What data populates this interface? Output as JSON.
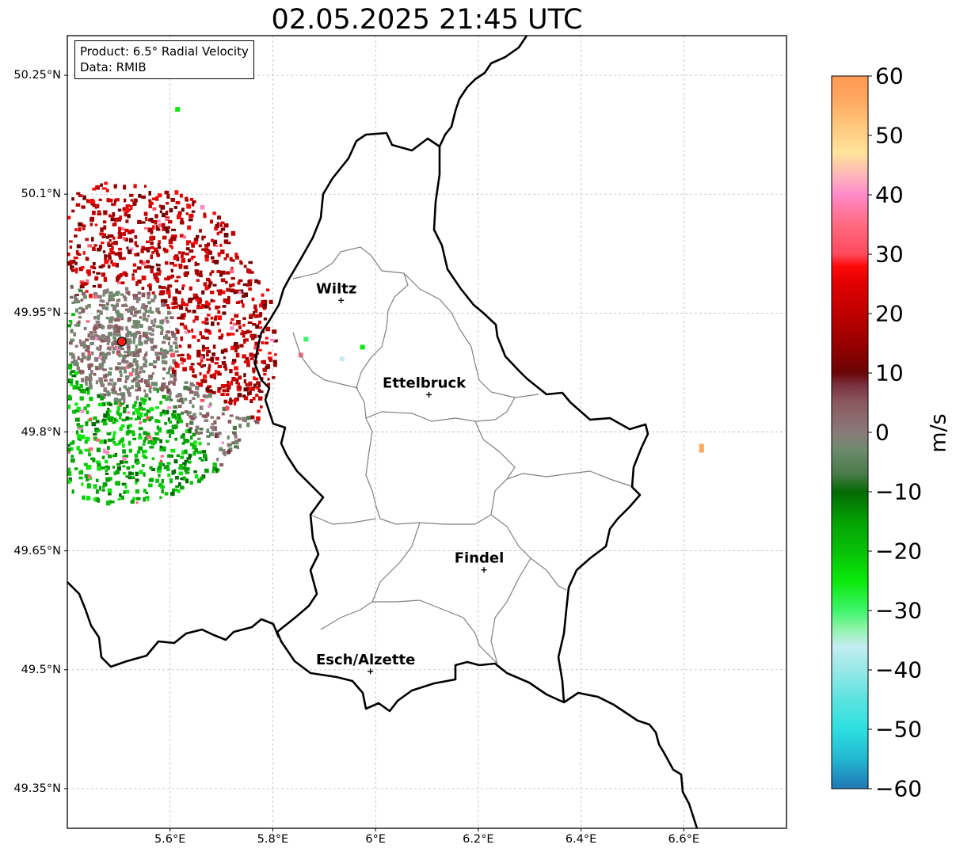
{
  "title": "02.05.2025 21:45 UTC",
  "info_box": {
    "product": "Product: 6.5° Radial Velocity",
    "data_source": "Data: RMIB"
  },
  "map": {
    "lat_ticks": [
      {
        "value": 50.25,
        "label": "50.25°N"
      },
      {
        "value": 50.1,
        "label": "50.1°N"
      },
      {
        "value": 49.95,
        "label": "49.95°N"
      },
      {
        "value": 49.8,
        "label": "49.8°N"
      },
      {
        "value": 49.65,
        "label": "49.65°N"
      },
      {
        "value": 49.5,
        "label": "49.5°N"
      },
      {
        "value": 49.35,
        "label": "49.35°N"
      }
    ],
    "lon_ticks": [
      {
        "value": 5.6,
        "label": "5.6°E"
      },
      {
        "value": 5.8,
        "label": "5.8°E"
      },
      {
        "value": 6.0,
        "label": "6°E"
      },
      {
        "value": 6.2,
        "label": "6.2°E"
      },
      {
        "value": 6.4,
        "label": "6.4°E"
      },
      {
        "value": 6.6,
        "label": "6.6°E"
      }
    ],
    "extent": {
      "lon_min": 5.4,
      "lon_max": 6.8,
      "lat_min": 49.3,
      "lat_max": 50.3
    },
    "cities": [
      {
        "name": "Wiltz",
        "lon": 5.933,
        "lat": 49.966
      },
      {
        "name": "Ettelbruck",
        "lon": 6.104,
        "lat": 49.847
      },
      {
        "name": "Findel",
        "lon": 6.211,
        "lat": 49.626
      },
      {
        "name": "Esch/Alzette",
        "lon": 5.99,
        "lat": 49.498
      }
    ],
    "radar_site": {
      "lon": 5.506,
      "lat": 49.914,
      "color": "#ff1a1a"
    },
    "gridlines": true,
    "colors": {
      "border": "#000000",
      "internal_border": "#808080",
      "grid": "#b0b0b0"
    }
  },
  "colorbar": {
    "label": "m/s",
    "min": -60,
    "max": 60,
    "ticks": [
      {
        "value": 60,
        "label": "60"
      },
      {
        "value": 50,
        "label": "50"
      },
      {
        "value": 40,
        "label": "40"
      },
      {
        "value": 30,
        "label": "30"
      },
      {
        "value": 20,
        "label": "20"
      },
      {
        "value": 10,
        "label": "10"
      },
      {
        "value": 0,
        "label": "0"
      },
      {
        "value": -10,
        "label": "−10"
      },
      {
        "value": -20,
        "label": "−20"
      },
      {
        "value": -30,
        "label": "−30"
      },
      {
        "value": -40,
        "label": "−40"
      },
      {
        "value": -50,
        "label": "−50"
      },
      {
        "value": -60,
        "label": "−60"
      }
    ],
    "stops": [
      {
        "value": -60,
        "color": "#1f77b4"
      },
      {
        "value": -55,
        "color": "#23b7d1"
      },
      {
        "value": -50,
        "color": "#2edfe0"
      },
      {
        "value": -45,
        "color": "#5ae3e0"
      },
      {
        "value": -40,
        "color": "#99e8e8"
      },
      {
        "value": -36,
        "color": "#c5eef0"
      },
      {
        "value": -33,
        "color": "#8ef3a8"
      },
      {
        "value": -30,
        "color": "#3df56a"
      },
      {
        "value": -25,
        "color": "#0ae80a"
      },
      {
        "value": -20,
        "color": "#07c107"
      },
      {
        "value": -15,
        "color": "#04a104"
      },
      {
        "value": -10,
        "color": "#036a03"
      },
      {
        "value": -7,
        "color": "#4a7a4a"
      },
      {
        "value": -3,
        "color": "#6d8a6d"
      },
      {
        "value": 0,
        "color": "#8a7a7a"
      },
      {
        "value": 5,
        "color": "#8a5a60"
      },
      {
        "value": 8,
        "color": "#7a3040"
      },
      {
        "value": 10,
        "color": "#6a0505"
      },
      {
        "value": 15,
        "color": "#9a0000"
      },
      {
        "value": 20,
        "color": "#c00000"
      },
      {
        "value": 25,
        "color": "#e00000"
      },
      {
        "value": 28,
        "color": "#ff0a0a"
      },
      {
        "value": 30,
        "color": "#ff4a5e"
      },
      {
        "value": 35,
        "color": "#ff6a80"
      },
      {
        "value": 40,
        "color": "#ff8ac8"
      },
      {
        "value": 43,
        "color": "#ffb2bd"
      },
      {
        "value": 47,
        "color": "#ffe39a"
      },
      {
        "value": 52,
        "color": "#ffc47a"
      },
      {
        "value": 56,
        "color": "#ffa860"
      },
      {
        "value": 60,
        "color": "#ff9a55"
      }
    ]
  }
}
